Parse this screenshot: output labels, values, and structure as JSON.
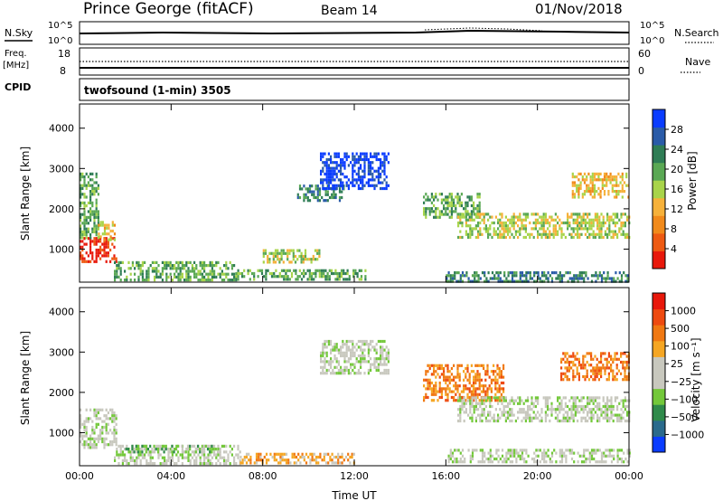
{
  "header": {
    "station": "Prince George (fitACF)",
    "beam": "Beam 14",
    "date": "01/Nov/2018"
  },
  "top_strip": {
    "nsky_label": "N.Sky",
    "nsky_ticks": [
      "10^5",
      "10^0"
    ],
    "nsearch_label": "N.Search",
    "nsearch_ticks": [
      "10^5",
      "10^0"
    ],
    "freq_label": "Freq.",
    "freq_unit": "[MHz]",
    "freq_ticks": [
      "18",
      "8"
    ],
    "nave_label": "Nave",
    "nave_ticks": [
      "60",
      "0"
    ],
    "cpid_label": "CPID",
    "cpid_value": "twofsound (1-min) 3505"
  },
  "chart_data": [
    {
      "type": "heatmap",
      "name": "power-panel",
      "ylabel": "Slant Range [km]",
      "xlabel": "",
      "y_ticks": [
        1000,
        2000,
        3000,
        4000
      ],
      "ylim": [
        180,
        4600
      ],
      "xlim": [
        0,
        24
      ],
      "x_ticks": [
        "00:00",
        "04:00",
        "08:00",
        "12:00",
        "16:00",
        "20:00",
        "00:00"
      ],
      "colorbar": {
        "label": "Power [dB]",
        "ticks": [
          "4",
          "8",
          "12",
          "16",
          "20",
          "24",
          "28"
        ],
        "colors": [
          "#0a3cff",
          "#2a5ba8",
          "#2f7d55",
          "#5aa854",
          "#a8d44a",
          "#f6b13a",
          "#f18a1b",
          "#ee5a12",
          "#e8180b"
        ]
      },
      "regions": [
        {
          "t0": 0.0,
          "t1": 1.6,
          "r0": 700,
          "r1": 1300,
          "v": 8
        },
        {
          "t0": 0.0,
          "t1": 0.8,
          "r0": 1300,
          "r1": 2900,
          "v": 3
        },
        {
          "t0": 0.8,
          "t1": 1.5,
          "r0": 1200,
          "r1": 1700,
          "v": 5
        },
        {
          "t0": 1.5,
          "t1": 6.8,
          "r0": 250,
          "r1": 700,
          "v": 3
        },
        {
          "t0": 6.8,
          "t1": 12.5,
          "r0": 250,
          "r1": 500,
          "v": 3
        },
        {
          "t0": 8.0,
          "t1": 10.5,
          "r0": 700,
          "r1": 1000,
          "v": 4
        },
        {
          "t0": 9.5,
          "t1": 11.5,
          "r0": 2200,
          "r1": 2600,
          "v": 2
        },
        {
          "t0": 10.5,
          "t1": 13.5,
          "r0": 2500,
          "r1": 3400,
          "v": 0
        },
        {
          "t0": 15.0,
          "t1": 17.5,
          "r0": 1800,
          "r1": 2400,
          "v": 3
        },
        {
          "t0": 16.5,
          "t1": 24.0,
          "r0": 1300,
          "r1": 1900,
          "v": 4
        },
        {
          "t0": 21.5,
          "t1": 24.0,
          "r0": 2300,
          "r1": 2900,
          "v": 5
        },
        {
          "t0": 16.0,
          "t1": 24.0,
          "r0": 200,
          "r1": 450,
          "v": 2
        }
      ]
    },
    {
      "type": "heatmap",
      "name": "velocity-panel",
      "ylabel": "Slant Range [km]",
      "xlabel": "Time UT",
      "y_ticks": [
        1000,
        2000,
        3000,
        4000
      ],
      "ylim": [
        180,
        4600
      ],
      "xlim": [
        0,
        24
      ],
      "x_ticks": [
        "00:00",
        "04:00",
        "08:00",
        "12:00",
        "16:00",
        "20:00",
        "00:00"
      ],
      "colorbar": {
        "label": "Velocity [m s⁻¹]",
        "ticks": [
          "1000",
          "500",
          "100",
          "25",
          "−25",
          "−100",
          "−500",
          "−1000"
        ],
        "colors": [
          "#0a3cff",
          "#2a6a8c",
          "#2f8a4a",
          "#73c83a",
          "#c8c8be",
          "#c8c8be",
          "#f5a623",
          "#f07812",
          "#ee4a10",
          "#e8180b"
        ]
      },
      "regions": [
        {
          "t0": 0.0,
          "t1": 1.6,
          "r0": 600,
          "r1": 1600,
          "v": 4
        },
        {
          "t0": 1.5,
          "t1": 7.0,
          "r0": 250,
          "r1": 700,
          "v": 4
        },
        {
          "t0": 2.0,
          "t1": 6.0,
          "r0": 500,
          "r1": 700,
          "v": 3
        },
        {
          "t0": 7.0,
          "t1": 12.0,
          "r0": 250,
          "r1": 500,
          "v": 6
        },
        {
          "t0": 10.5,
          "t1": 13.5,
          "r0": 2500,
          "r1": 3300,
          "v": 4
        },
        {
          "t0": 15.0,
          "t1": 18.5,
          "r0": 1800,
          "r1": 2700,
          "v": 7
        },
        {
          "t0": 16.5,
          "t1": 24.0,
          "r0": 1300,
          "r1": 1900,
          "v": 4
        },
        {
          "t0": 21.0,
          "t1": 24.0,
          "r0": 2300,
          "r1": 3000,
          "v": 7
        },
        {
          "t0": 16.0,
          "t1": 24.0,
          "r0": 300,
          "r1": 600,
          "v": 4
        }
      ]
    }
  ]
}
